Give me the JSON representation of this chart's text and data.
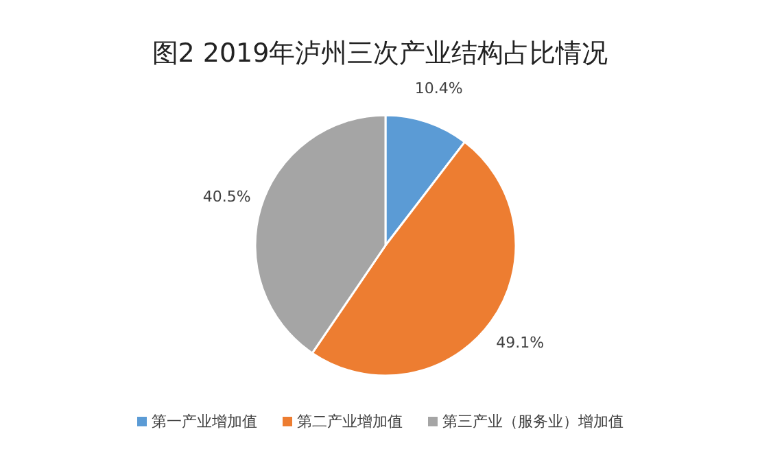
{
  "chart_data": {
    "type": "pie",
    "title": "图2  2019年泸州三次产业结构占比情况",
    "categories": [
      "第一产业增加值",
      "第二产业增加值",
      "第三产业（服务业）增加值"
    ],
    "values": [
      10.4,
      49.1,
      40.5
    ],
    "colors": [
      "#5b9bd5",
      "#ed7d31",
      "#a5a5a5"
    ],
    "value_labels": [
      "10.4%",
      "49.1%",
      "40.5%"
    ],
    "legend": "bottom"
  }
}
